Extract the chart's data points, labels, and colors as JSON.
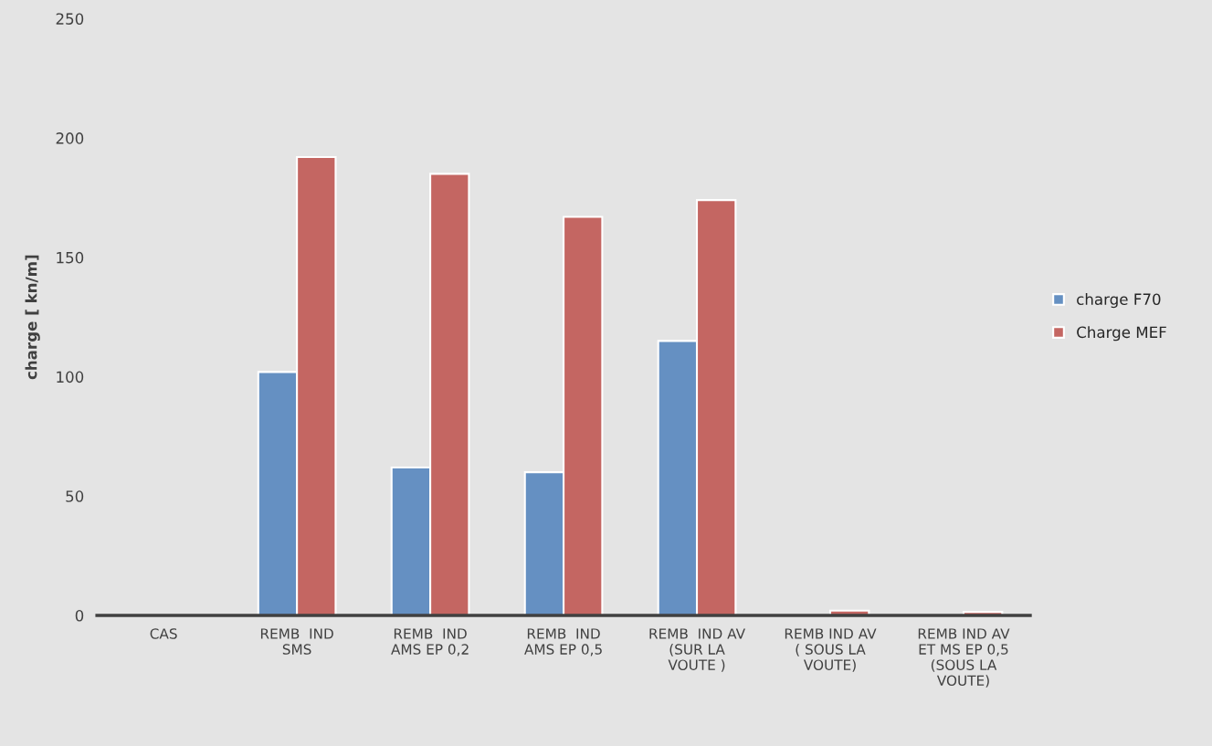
{
  "chart_data": {
    "type": "bar",
    "ylabel": "charge [ kn/m]",
    "categories": [
      "CAS",
      "REMB  IND\nSMS",
      "REMB  IND\nAMS EP 0,2",
      "REMB  IND\nAMS EP 0,5",
      "REMB  IND AV\n(SUR LA\nVOUTE )",
      "REMB IND AV\n( SOUS LA\nVOUTE)",
      "REMB IND AV\nET MS EP 0,5\n(SOUS LA\nVOUTE)"
    ],
    "series": [
      {
        "name": "charge F70",
        "color": "#6590c2",
        "values": [
          null,
          102,
          62,
          60,
          115,
          null,
          null
        ]
      },
      {
        "name": "Charge MEF",
        "color": "#c46662",
        "values": [
          null,
          192,
          185,
          167,
          174,
          2,
          1.5
        ]
      }
    ],
    "ylim": [
      0,
      250
    ],
    "yticks": [
      0,
      50,
      100,
      150,
      200,
      250
    ],
    "grid": false,
    "legend": "right"
  }
}
